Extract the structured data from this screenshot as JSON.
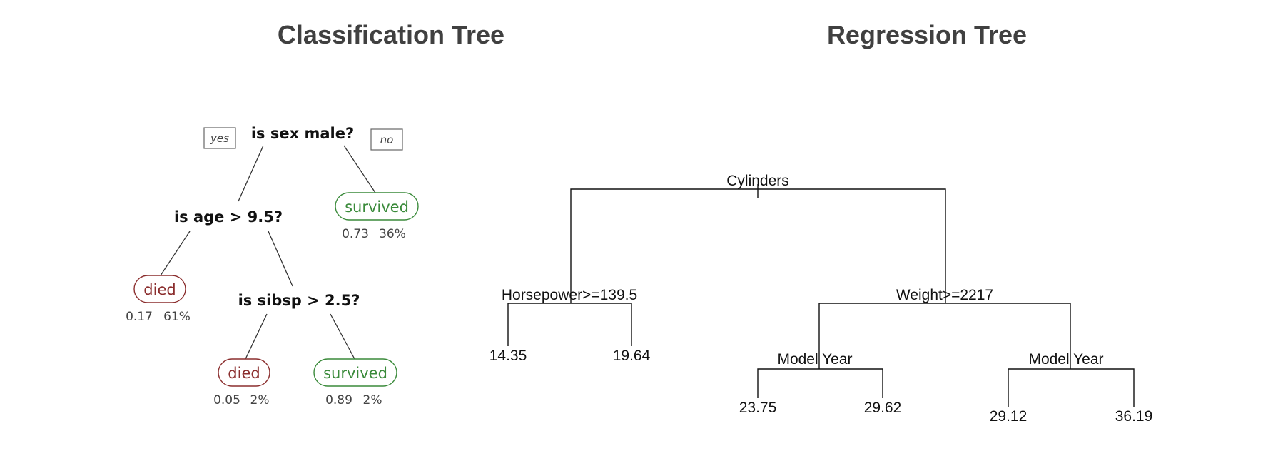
{
  "classification": {
    "title": "Classification Tree",
    "yes_label": "yes",
    "no_label": "no",
    "root_question": "is sex male?",
    "age_question": "is age > 9.5?",
    "sibsp_question": "is sibsp > 2.5?",
    "leaf_survived_female": {
      "label": "survived",
      "prob": "0.73",
      "pct": "36%"
    },
    "leaf_died_adult_male": {
      "label": "died",
      "prob": "0.17",
      "pct": "61%"
    },
    "leaf_died_sibsp": {
      "label": "died",
      "prob": "0.05",
      "pct": "2%"
    },
    "leaf_survived_sibsp": {
      "label": "survived",
      "prob": "0.89",
      "pct": "2%"
    },
    "colors": {
      "died": "#8b2e2e",
      "survived": "#3a8a3a"
    }
  },
  "regression": {
    "title": "Regression Tree",
    "root_split": "Cylinders",
    "left_split": "Horsepower>=139.5",
    "right_split": "Weight>=2217",
    "model_year_left": "Model Year",
    "model_year_right": "Model Year",
    "leaf_1": "14.35",
    "leaf_2": "19.64",
    "leaf_3": "23.75",
    "leaf_4": "29.62",
    "leaf_5": "29.12",
    "leaf_6": "36.19"
  }
}
